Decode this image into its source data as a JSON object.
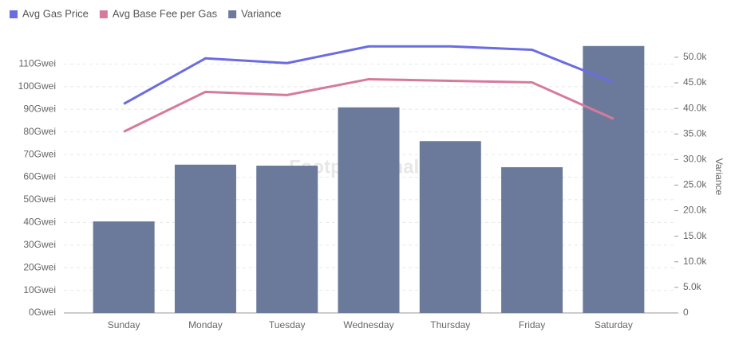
{
  "chart_data": {
    "type": "bar-line",
    "watermark": "Footprint Analytics",
    "categories": [
      "Sunday",
      "Monday",
      "Tuesday",
      "Wednesday",
      "Thursday",
      "Friday",
      "Saturday"
    ],
    "series": [
      {
        "name": "Avg Gas Price",
        "color": "#6b6be2",
        "kind": "line",
        "values": [
          92.4,
          112.5,
          110.4,
          117.8,
          117.8,
          116.3,
          101.9
        ]
      },
      {
        "name": "Avg Base Fee per Gas",
        "color": "#d67a9d",
        "kind": "line",
        "values": [
          80.1,
          97.7,
          96.3,
          103.3,
          102.6,
          101.9,
          85.8
        ]
      },
      {
        "name": "Variance",
        "color": "#6b7a9a",
        "kind": "bar",
        "axis": "y2",
        "values": [
          17900,
          29000,
          28800,
          40200,
          33600,
          28500,
          52200
        ]
      }
    ],
    "ylim": [
      0,
      120
    ],
    "yticks": [
      {
        "value": 0,
        "label": "0Gwei"
      },
      {
        "value": 10,
        "label": "10Gwei"
      },
      {
        "value": 20,
        "label": "20Gwei"
      },
      {
        "value": 30,
        "label": "30Gwei"
      },
      {
        "value": 40,
        "label": "40Gwei"
      },
      {
        "value": 50,
        "label": "50Gwei"
      },
      {
        "value": 60,
        "label": "60Gwei"
      },
      {
        "value": 70,
        "label": "70Gwei"
      },
      {
        "value": 80,
        "label": "80Gwei"
      },
      {
        "value": 90,
        "label": "90Gwei"
      },
      {
        "value": 100,
        "label": "100Gwei"
      },
      {
        "value": 110,
        "label": "110Gwei"
      }
    ],
    "y2label": "Variance",
    "y2lim": [
      0,
      53100
    ],
    "y2ticks": [
      0,
      {
        "value": 5000,
        "label": "5.0k"
      },
      {
        "value": 10000,
        "label": "10.0k"
      },
      {
        "value": 15000,
        "label": "15.0k"
      },
      {
        "value": 20000,
        "label": "20.0k"
      },
      {
        "value": 25000,
        "label": "25.0k"
      },
      {
        "value": 30000,
        "label": "30.0k"
      },
      {
        "value": 35000,
        "label": "35.0k"
      },
      {
        "value": 40000,
        "label": "40.0k"
      },
      {
        "value": 45000,
        "label": "45.0k"
      },
      {
        "value": 50000,
        "label": "50.0k"
      }
    ],
    "grid": true
  }
}
